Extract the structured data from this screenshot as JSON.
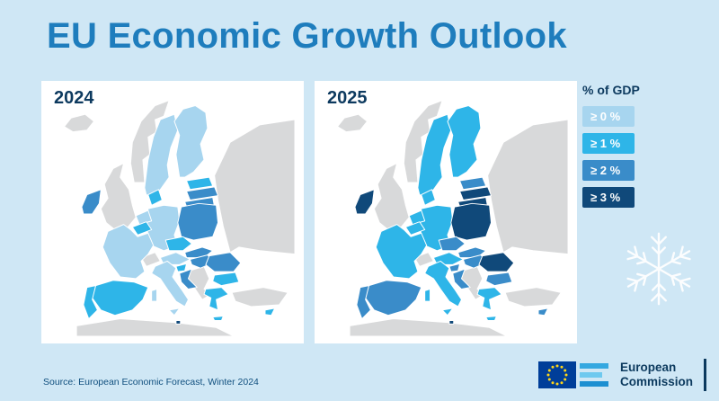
{
  "title": {
    "part1": "EU Economic ",
    "part2": "Growth",
    "part3": " Outlook"
  },
  "panels": [
    {
      "year": "2024"
    },
    {
      "year": "2025"
    }
  ],
  "legend": {
    "title": "% of GDP",
    "items": [
      {
        "label": "≥ 0 %",
        "color": "#a7d5ef"
      },
      {
        "label": "≥ 1 %",
        "color": "#2eb5e8"
      },
      {
        "label": "≥ 2 %",
        "color": "#3a8cc9"
      },
      {
        "label": "≥ 3 %",
        "color": "#10497a"
      }
    ]
  },
  "source": "Source: European Economic Forecast, Winter 2024",
  "footer_logo": {
    "line1": "European",
    "line2": "Commission"
  },
  "map_colors": {
    "non_eu": "#d8d9da",
    "sea": "#ffffff"
  },
  "chart_data": {
    "type": "choropleth",
    "title": "EU Economic Growth Outlook",
    "unit": "% of GDP",
    "years": [
      "2024",
      "2025"
    ],
    "categories": [
      "≥ 0 %",
      "≥ 1 %",
      "≥ 2 %",
      "≥ 3 %"
    ],
    "values": {
      "2024": {
        "portugal": 1,
        "spain": 1,
        "france": 0,
        "ireland": 2,
        "belgium": 1,
        "netherlands": 0,
        "germany": 0,
        "denmark": 1,
        "sweden": 0,
        "finland": 0,
        "estonia": 1,
        "latvia": 2,
        "lithuania": 2,
        "poland": 2,
        "czechia": 1,
        "slovakia": 2,
        "austria": 0,
        "hungary": 2,
        "romania": 2,
        "bulgaria": 1,
        "greece": 1,
        "italy": 0,
        "slovenia": 1,
        "croatia": 2,
        "malta": 3,
        "cyprus": 1
      },
      "2025": {
        "portugal": 2,
        "spain": 2,
        "france": 1,
        "ireland": 3,
        "belgium": 1,
        "netherlands": 1,
        "germany": 1,
        "denmark": 1,
        "sweden": 1,
        "finland": 1,
        "estonia": 2,
        "latvia": 3,
        "lithuania": 3,
        "poland": 3,
        "czechia": 2,
        "slovakia": 2,
        "austria": 1,
        "hungary": 2,
        "romania": 3,
        "bulgaria": 2,
        "greece": 1,
        "italy": 1,
        "slovenia": 2,
        "croatia": 2,
        "malta": 3,
        "cyprus": 2
      }
    }
  }
}
